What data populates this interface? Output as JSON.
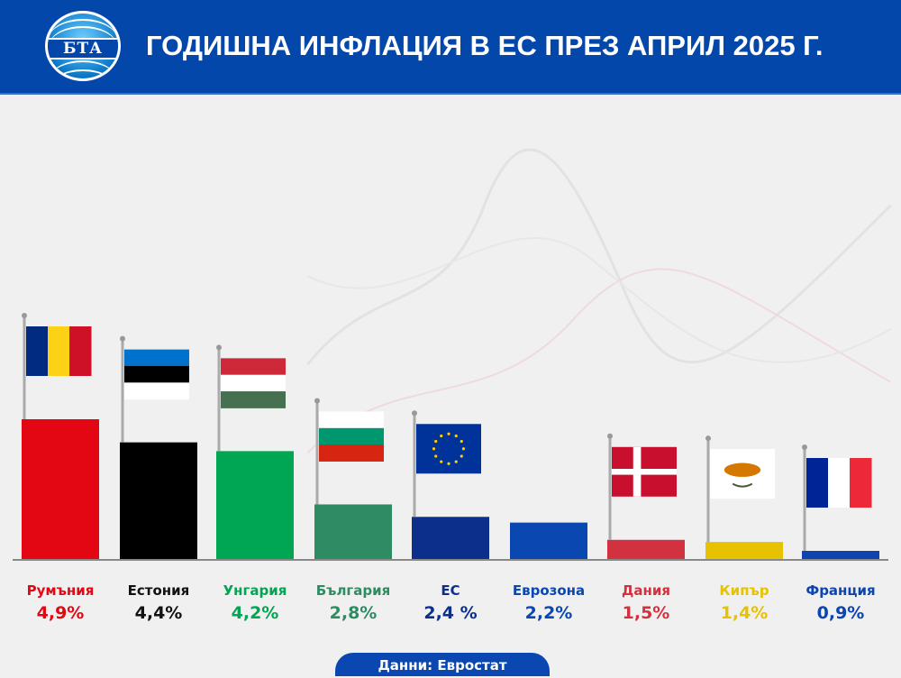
{
  "header": {
    "title": "ГОДИШНА ИНФЛАЦИЯ В ЕС ПРЕЗ АПРИЛ 2025 Г.",
    "logo_text": "БТА"
  },
  "footer": {
    "source": "Данни: Евростат"
  },
  "chart_data": {
    "type": "bar",
    "title": "ГОДИШНА ИНФЛАЦИЯ В ЕС ПРЕЗ АПРИЛ 2025 Г.",
    "categories": [
      "Румъния",
      "Естония",
      "Унгария",
      "България",
      "ЕС",
      "Еврозона",
      "Дания",
      "Кипър",
      "Франция"
    ],
    "values": [
      4.9,
      4.4,
      4.2,
      2.8,
      2.4,
      2.2,
      1.5,
      1.4,
      0.9
    ],
    "value_labels": [
      "4,9%",
      "4,4%",
      "4,2%",
      "2,8%",
      "2,4 %",
      "2,2%",
      "1,5%",
      "1,4%",
      "0,9%"
    ],
    "colors": [
      "#e30613",
      "#000000",
      "#00a651",
      "#2e8b62",
      "#0b2f8a",
      "#0a47b0",
      "#d2323f",
      "#e7c200",
      "#0c44b0"
    ],
    "flags": [
      "romania",
      "estonia",
      "hungary",
      "bulgaria",
      "eu",
      "",
      "denmark",
      "cyprus",
      "france"
    ],
    "xlabel": "",
    "ylabel": "",
    "grid": false,
    "legend": "none"
  }
}
